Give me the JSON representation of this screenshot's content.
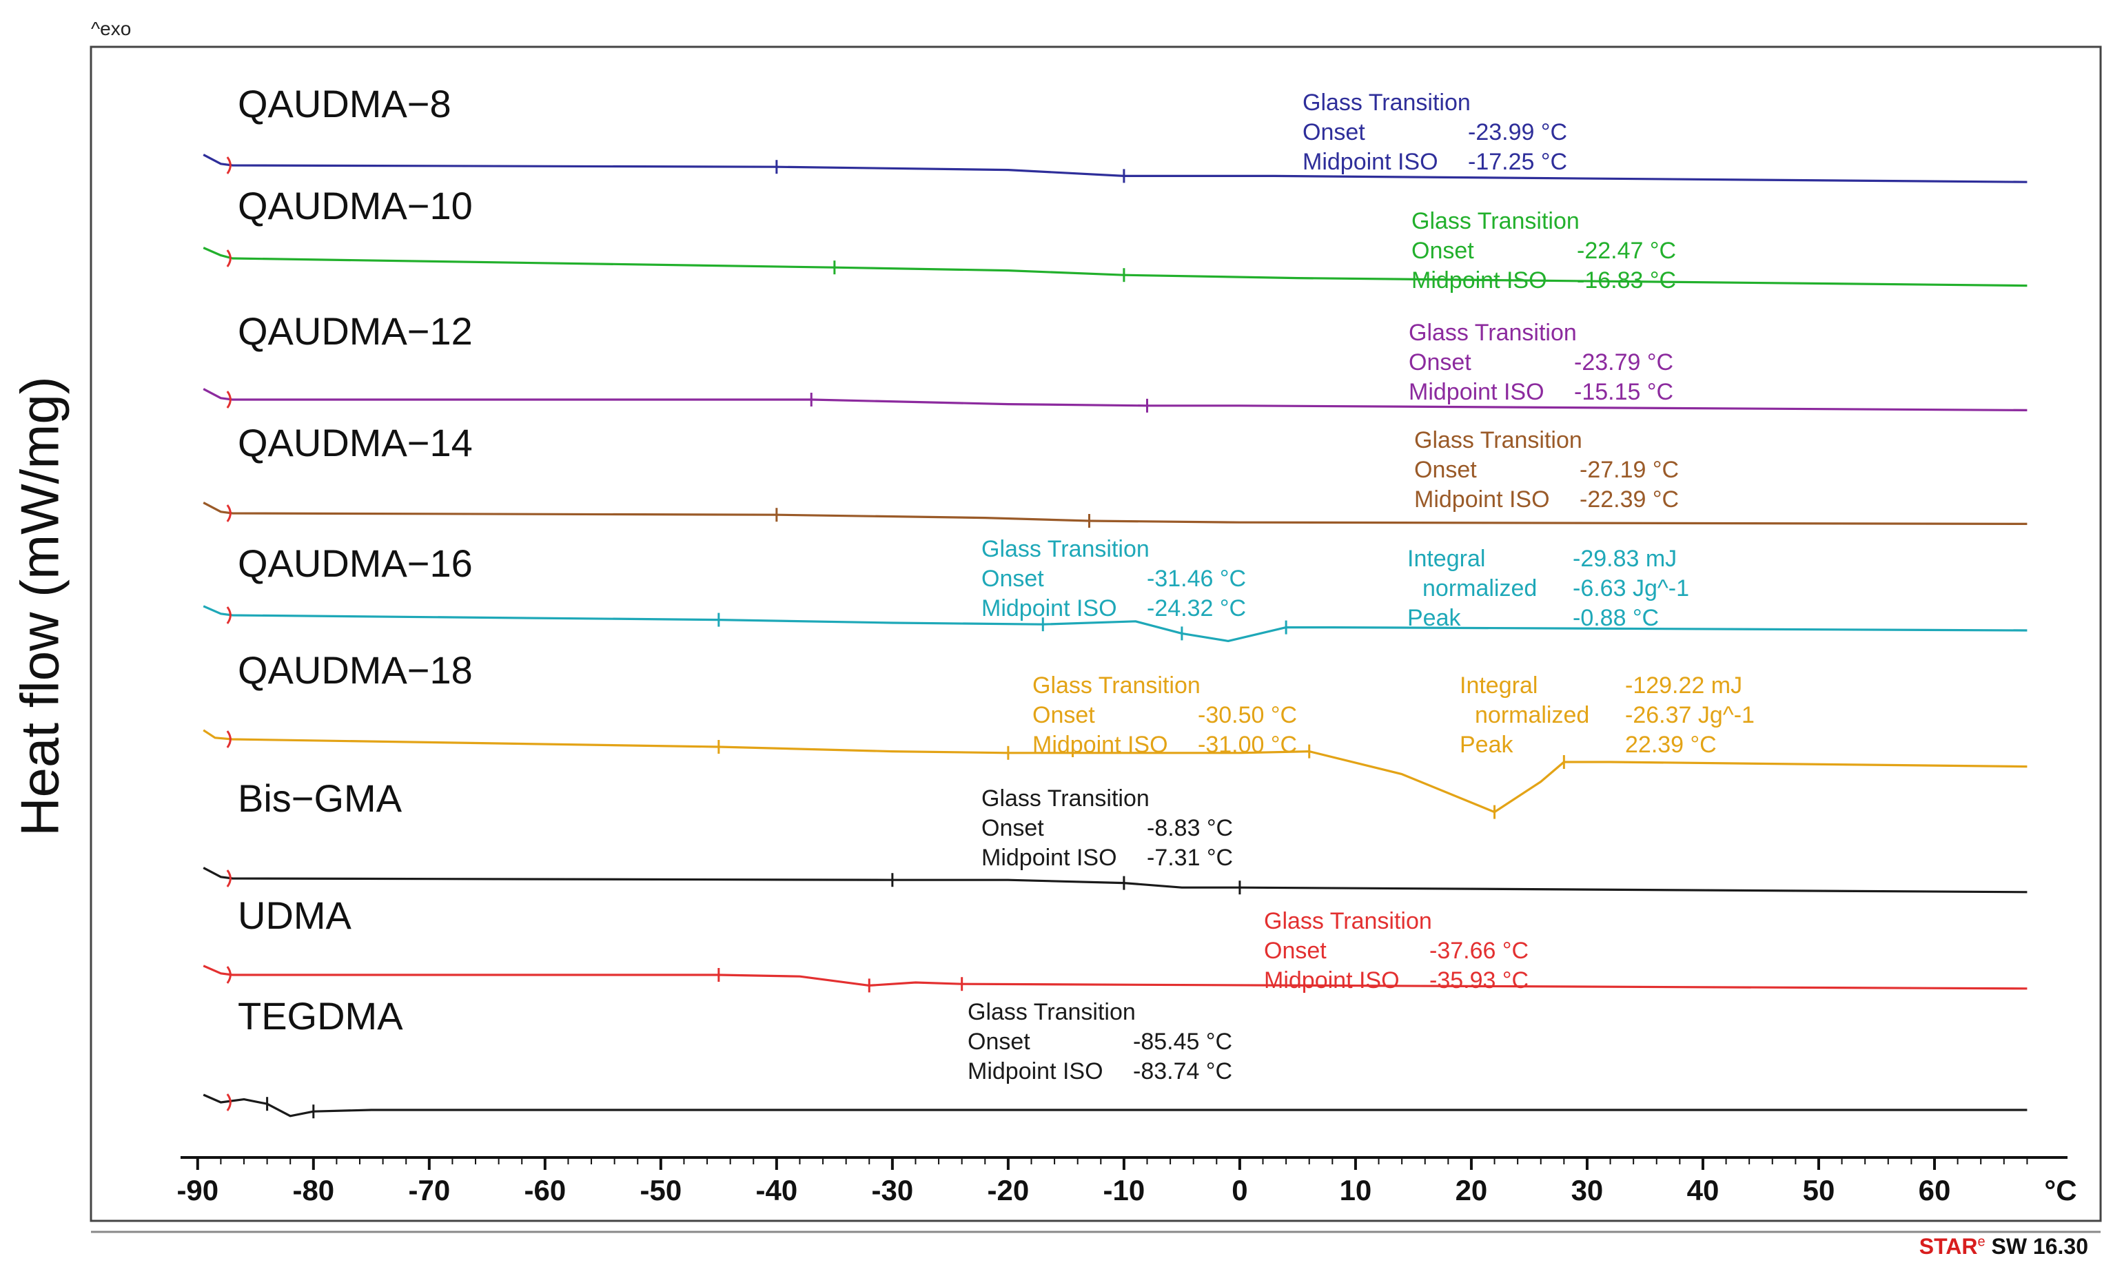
{
  "header": {
    "exo_label": "^exo"
  },
  "footer": {
    "software": "STARᵉ SW 16.30",
    "star": "STAR",
    "star_sup": "e",
    "sw": " SW 16.30"
  },
  "chart_data": {
    "type": "line",
    "title": "",
    "xlabel": "",
    "x_unit": "°C",
    "ylabel": "Heat flow (mW/mg)",
    "xlim": [
      -91,
      70
    ],
    "xticks": [
      -90,
      -80,
      -70,
      -60,
      -50,
      -40,
      -30,
      -20,
      -10,
      0,
      10,
      20,
      30,
      40,
      50,
      60
    ],
    "xtick_labels": [
      "-90",
      "-80",
      "-70",
      "-60",
      "-50",
      "-40",
      "-30",
      "-20",
      "-10",
      "0",
      "10",
      "20",
      "30",
      "40",
      "50",
      "60"
    ],
    "series": [
      {
        "name": "QAUDMA−8",
        "color": "#2e2e9a",
        "points": [
          [
            -89.5,
            0.7
          ],
          [
            -88,
            0.1
          ],
          [
            -87,
            0
          ],
          [
            -40,
            -0.1
          ],
          [
            -20,
            -0.3
          ],
          [
            -10,
            -0.7
          ],
          [
            3,
            -0.7
          ],
          [
            68,
            -1.1
          ]
        ],
        "annotations": [
          {
            "title": "Glass Transition",
            "rows": [
              [
                "Onset",
                "-23.99 °C"
              ],
              [
                "Midpoint ISO",
                "-17.25 °C"
              ]
            ]
          }
        ]
      },
      {
        "name": "QAUDMA−10",
        "color": "#22b02c",
        "points": [
          [
            -89.5,
            0.7
          ],
          [
            -88,
            0.2
          ],
          [
            -87,
            0
          ],
          [
            -35,
            -0.6
          ],
          [
            -20,
            -0.8
          ],
          [
            -10,
            -1.1
          ],
          [
            5,
            -1.3
          ],
          [
            68,
            -1.8
          ]
        ],
        "annotations": [
          {
            "title": "Glass Transition",
            "rows": [
              [
                "Onset",
                "-22.47 °C"
              ],
              [
                "Midpoint ISO",
                "-16.83 °C"
              ]
            ]
          }
        ]
      },
      {
        "name": "QAUDMA−12",
        "color": "#8c2a9e",
        "points": [
          [
            -89.5,
            0.7
          ],
          [
            -88,
            0.1
          ],
          [
            -87,
            0
          ],
          [
            -37,
            0
          ],
          [
            -20,
            -0.3
          ],
          [
            -8,
            -0.4
          ],
          [
            0,
            -0.4
          ],
          [
            68,
            -0.7
          ]
        ],
        "annotations": [
          {
            "title": "Glass Transition",
            "rows": [
              [
                "Onset",
                "-23.79 °C"
              ],
              [
                "Midpoint ISO",
                "-15.15 °C"
              ]
            ]
          }
        ]
      },
      {
        "name": "QAUDMA−14",
        "color": "#9a5a28",
        "points": [
          [
            -89.5,
            0.7
          ],
          [
            -88,
            0.1
          ],
          [
            -87,
            0
          ],
          [
            -40,
            -0.1
          ],
          [
            -22,
            -0.3
          ],
          [
            -13,
            -0.5
          ],
          [
            0,
            -0.6
          ],
          [
            68,
            -0.7
          ]
        ],
        "annotations": [
          {
            "title": "Glass Transition",
            "rows": [
              [
                "Onset",
                "-27.19 °C"
              ],
              [
                "Midpoint ISO",
                "-22.39 °C"
              ]
            ]
          }
        ]
      },
      {
        "name": "QAUDMA−16",
        "color": "#1ea8b8",
        "points": [
          [
            -89.5,
            0.6
          ],
          [
            -88,
            0.1
          ],
          [
            -87,
            0
          ],
          [
            -45,
            -0.3
          ],
          [
            -30,
            -0.5
          ],
          [
            -17,
            -0.6
          ],
          [
            -9,
            -0.4
          ],
          [
            -5,
            -1.2
          ],
          [
            -1,
            -1.7
          ],
          [
            4,
            -0.8
          ],
          [
            8,
            -0.8
          ],
          [
            68,
            -1.0
          ]
        ],
        "annotations": [
          {
            "title": "Glass Transition",
            "rows": [
              [
                "Onset",
                "-31.46 °C"
              ],
              [
                "Midpoint ISO",
                "-24.32 °C"
              ]
            ]
          },
          {
            "title": "",
            "rows": [
              [
                "Integral",
                "-29.83 mJ"
              ],
              [
                "normalized",
                "-6.63 Jg^-1"
              ],
              [
                "Peak",
                "-0.88 °C"
              ]
            ]
          }
        ]
      },
      {
        "name": "QAUDMA−18",
        "color": "#e3a316",
        "points": [
          [
            -89.5,
            0.6
          ],
          [
            -88.5,
            0.1
          ],
          [
            -87,
            0
          ],
          [
            -45,
            -0.5
          ],
          [
            -30,
            -0.8
          ],
          [
            -20,
            -0.9
          ],
          [
            0,
            -0.9
          ],
          [
            6,
            -0.8
          ],
          [
            14,
            -2.3
          ],
          [
            22,
            -4.8
          ],
          [
            26,
            -2.8
          ],
          [
            28,
            -1.5
          ],
          [
            32,
            -1.5
          ],
          [
            68,
            -1.8
          ]
        ],
        "annotations": [
          {
            "title": "Glass Transition",
            "rows": [
              [
                "Onset",
                "-30.50 °C"
              ],
              [
                "Midpoint ISO",
                "-31.00 °C"
              ]
            ]
          },
          {
            "title": "",
            "rows": [
              [
                "Integral",
                "-129.22 mJ"
              ],
              [
                "normalized",
                "-26.37 Jg^-1"
              ],
              [
                "Peak",
                "22.39 °C"
              ]
            ]
          }
        ]
      },
      {
        "name": "Bis−GMA",
        "color": "#1a1a1a",
        "points": [
          [
            -89.5,
            0.7
          ],
          [
            -88,
            0.1
          ],
          [
            -87,
            0
          ],
          [
            -30,
            -0.1
          ],
          [
            -20,
            -0.1
          ],
          [
            -10,
            -0.3
          ],
          [
            -5,
            -0.6
          ],
          [
            0,
            -0.6
          ],
          [
            68,
            -0.9
          ]
        ],
        "annotations": [
          {
            "title": "Glass Transition",
            "rows": [
              [
                "Onset",
                "-8.83 °C"
              ],
              [
                "Midpoint ISO",
                "-7.31 °C"
              ]
            ]
          }
        ]
      },
      {
        "name": "UDMA",
        "color": "#e33030",
        "points": [
          [
            -89.5,
            0.6
          ],
          [
            -88,
            0.1
          ],
          [
            -87,
            0
          ],
          [
            -45,
            0
          ],
          [
            -38,
            -0.1
          ],
          [
            -32,
            -0.7
          ],
          [
            -28,
            -0.5
          ],
          [
            -24,
            -0.6
          ],
          [
            68,
            -0.9
          ]
        ],
        "annotations": [
          {
            "title": "Glass Transition",
            "rows": [
              [
                "Onset",
                "-37.66 °C"
              ],
              [
                "Midpoint ISO",
                "-35.93 °C"
              ]
            ]
          }
        ]
      },
      {
        "name": "TEGDMA",
        "color": "#1a1a1a",
        "points": [
          [
            -89.5,
            0.5
          ],
          [
            -88,
            0
          ],
          [
            -86,
            0.2
          ],
          [
            -84,
            -0.1
          ],
          [
            -82,
            -0.9
          ],
          [
            -80,
            -0.6
          ],
          [
            -75,
            -0.5
          ],
          [
            68,
            -0.5
          ]
        ],
        "annotations": [
          {
            "title": "Glass Transition",
            "rows": [
              [
                "Onset",
                "-85.45 °C"
              ],
              [
                "Midpoint ISO",
                "-83.74 °C"
              ]
            ]
          }
        ]
      }
    ]
  }
}
